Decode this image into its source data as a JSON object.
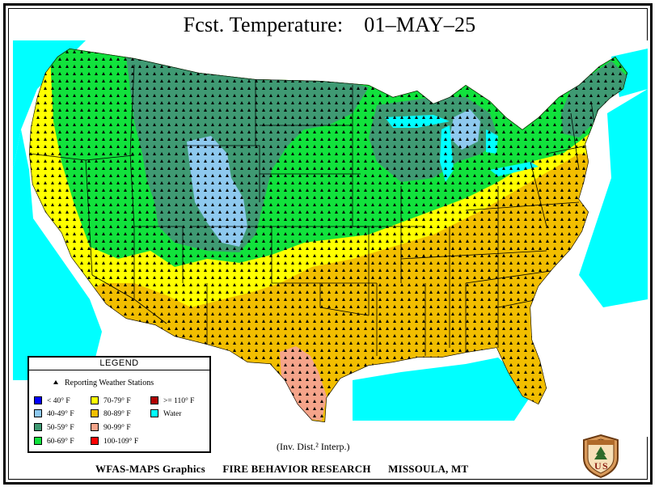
{
  "title": "Fcst. Temperature:",
  "date": "01–MAY–25",
  "legend": {
    "heading": "LEGEND",
    "stations_label": "Reporting Weather Stations",
    "items": [
      {
        "label": "< 40° F",
        "color": "#0000ff"
      },
      {
        "label": "40-49° F",
        "color": "#8ec9ef"
      },
      {
        "label": "50-59° F",
        "color": "#3f9a73"
      },
      {
        "label": "60-69° F",
        "color": "#11e23c"
      },
      {
        "label": "70-79° F",
        "color": "#ffff00"
      },
      {
        "label": "80-89° F",
        "color": "#f2be00"
      },
      {
        "label": "90-99° F",
        "color": "#f5a48a"
      },
      {
        "label": "100-109° F",
        "color": "#ff0000"
      },
      {
        "label": ">= 110° F",
        "color": "#b00000"
      },
      {
        "label": "Water",
        "color": "#00ffff"
      }
    ]
  },
  "interp_note": "(Inv. Dist.² Interp.)",
  "footer": {
    "left": "WFAS-MAPS Graphics",
    "middle": "FIRE BEHAVIOR RESEARCH",
    "right": "MISSOULA, MT"
  },
  "logo": {
    "icon": "forest-service-shield-icon",
    "text": "US"
  }
}
